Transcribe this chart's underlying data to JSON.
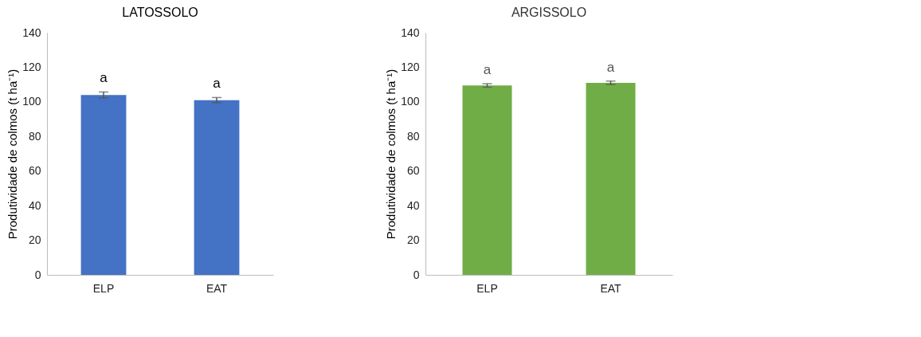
{
  "chart_data": [
    {
      "type": "bar",
      "title": "LATOSSOLO",
      "ylabel": "Produtividade de colmos (t ha⁻¹)",
      "categories": [
        "ELP",
        "EAT"
      ],
      "values": [
        104,
        101
      ],
      "errors": [
        1.7,
        1.5
      ],
      "colors": [
        "#4472c4",
        "#4472c4"
      ],
      "ylim": [
        0,
        140
      ],
      "yticks": [
        0,
        20,
        40,
        60,
        80,
        100,
        120,
        140
      ],
      "grid": false,
      "annotations": [
        "a",
        "a"
      ]
    },
    {
      "type": "bar",
      "title": "ARGISSOLO",
      "ylabel": "Produtividade de colmos (t ha⁻¹)",
      "categories": [
        "ELP",
        "EAT"
      ],
      "values": [
        109.5,
        111
      ],
      "errors": [
        1,
        1
      ],
      "colors": [
        "#70ad47",
        "#70ad47"
      ],
      "ylim": [
        0,
        140
      ],
      "yticks": [
        0,
        20,
        40,
        60,
        80,
        100,
        120,
        140
      ],
      "grid": false,
      "annotations": [
        "a",
        "a"
      ]
    }
  ]
}
